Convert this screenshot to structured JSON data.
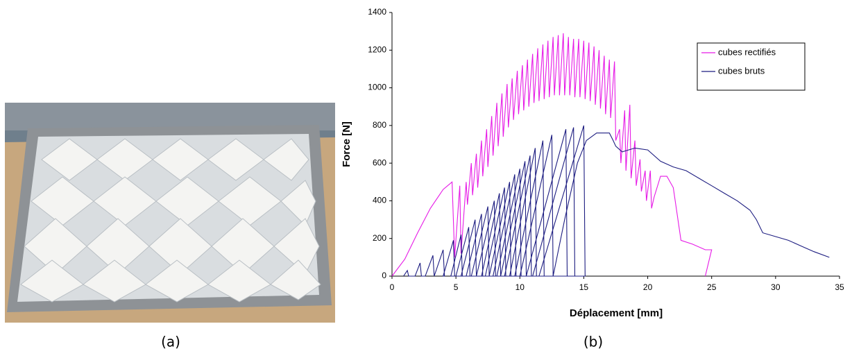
{
  "panels": {
    "a": "(a)",
    "b": "(b)"
  },
  "chart_data": {
    "type": "line",
    "xlabel": "Déplacement [mm]",
    "ylabel": "Force [N]",
    "xlim": [
      0,
      35
    ],
    "xticks": [
      0,
      5,
      10,
      15,
      20,
      25,
      30,
      35
    ],
    "ylim": [
      0,
      1400
    ],
    "yticks": [
      0,
      200,
      400,
      600,
      800,
      1000,
      1200,
      1400
    ],
    "legend": "top-right",
    "series": [
      {
        "name": "cubes rectifiés",
        "color": "#e619e6",
        "x": [
          0,
          1,
          2,
          3,
          4,
          4.7,
          4.9,
          5.3,
          5.4,
          5.8,
          5.9,
          6.2,
          6.3,
          6.6,
          6.7,
          7.0,
          7.1,
          7.4,
          7.5,
          7.8,
          7.9,
          8.2,
          8.3,
          8.6,
          8.7,
          9.0,
          9.1,
          9.4,
          9.5,
          9.8,
          9.9,
          10.2,
          10.3,
          10.6,
          10.7,
          11.0,
          11.1,
          11.4,
          11.5,
          11.8,
          11.9,
          12.2,
          12.3,
          12.6,
          12.7,
          13.0,
          13.1,
          13.4,
          13.5,
          13.8,
          13.9,
          14.2,
          14.3,
          14.6,
          14.7,
          15.0,
          15.1,
          15.4,
          15.5,
          15.8,
          15.9,
          16.2,
          16.3,
          16.6,
          16.7,
          17.0,
          17.1,
          17.4,
          17.5,
          17.8,
          17.9,
          18.2,
          18.3,
          18.6,
          18.7,
          19.0,
          19.1,
          19.4,
          19.5,
          19.8,
          19.9,
          20.2,
          20.3,
          20.5,
          21,
          21.5,
          22,
          22.6,
          23.5,
          24.5,
          25,
          24.5
        ],
        "values": [
          0,
          90,
          230,
          360,
          460,
          500,
          100,
          480,
          120,
          500,
          380,
          600,
          430,
          650,
          470,
          720,
          530,
          780,
          580,
          850,
          640,
          920,
          690,
          970,
          740,
          1020,
          790,
          1050,
          830,
          1090,
          860,
          1120,
          880,
          1150,
          900,
          1180,
          920,
          1210,
          930,
          1230,
          940,
          1250,
          950,
          1270,
          960,
          1280,
          960,
          1290,
          960,
          1270,
          960,
          1260,
          950,
          1260,
          950,
          1250,
          940,
          1240,
          930,
          1220,
          910,
          1200,
          890,
          1170,
          860,
          1150,
          840,
          1140,
          720,
          780,
          600,
          880,
          560,
          910,
          520,
          720,
          480,
          620,
          450,
          560,
          400,
          560,
          360,
          420,
          530,
          530,
          470,
          190,
          170,
          140,
          140,
          0
        ]
      },
      {
        "name": "cubes bruts",
        "color": "#1c1c80",
        "x": [
          0.9,
          1.2,
          1.3,
          1.8,
          2.2,
          2.3,
          2.6,
          3.2,
          3.3,
          3.3,
          4.0,
          4.1,
          4.0,
          4.8,
          4.9,
          4.6,
          5.4,
          5.5,
          5.0,
          6.0,
          6.1,
          5.4,
          6.5,
          6.6,
          5.8,
          7.0,
          7.1,
          6.2,
          7.5,
          7.6,
          6.6,
          8.0,
          8.1,
          7.0,
          8.4,
          8.5,
          7.3,
          8.8,
          8.9,
          7.6,
          9.2,
          9.3,
          7.9,
          9.6,
          9.7,
          8.2,
          10.0,
          10.1,
          8.5,
          10.4,
          10.5,
          8.8,
          10.8,
          10.9,
          9.2,
          11.2,
          11.3,
          9.6,
          11.8,
          11.9,
          10.0,
          12.5,
          12.6,
          10.5,
          13.6,
          13.7,
          11.0,
          14.2,
          14.3,
          11.5,
          15.0,
          15.1,
          12.6,
          13.5,
          14.5,
          15.2,
          16,
          17,
          17.3,
          17.5,
          18,
          19,
          20,
          21,
          22,
          23,
          24,
          25,
          26,
          27,
          28,
          28.5,
          29,
          30,
          31,
          32,
          33,
          34.2
        ],
        "values": [
          0,
          30,
          0,
          0,
          70,
          0,
          0,
          110,
          0,
          0,
          140,
          0,
          0,
          190,
          0,
          0,
          220,
          0,
          0,
          260,
          0,
          0,
          300,
          0,
          0,
          330,
          0,
          0,
          370,
          0,
          0,
          400,
          0,
          0,
          440,
          0,
          0,
          470,
          0,
          0,
          500,
          0,
          0,
          540,
          0,
          0,
          570,
          0,
          0,
          610,
          0,
          0,
          640,
          0,
          0,
          680,
          0,
          0,
          720,
          0,
          0,
          750,
          0,
          0,
          780,
          0,
          0,
          790,
          0,
          0,
          800,
          0,
          0,
          300,
          600,
          720,
          760,
          760,
          720,
          690,
          660,
          680,
          670,
          610,
          580,
          560,
          520,
          480,
          440,
          400,
          350,
          300,
          230,
          210,
          190,
          160,
          130,
          100
        ]
      }
    ]
  }
}
